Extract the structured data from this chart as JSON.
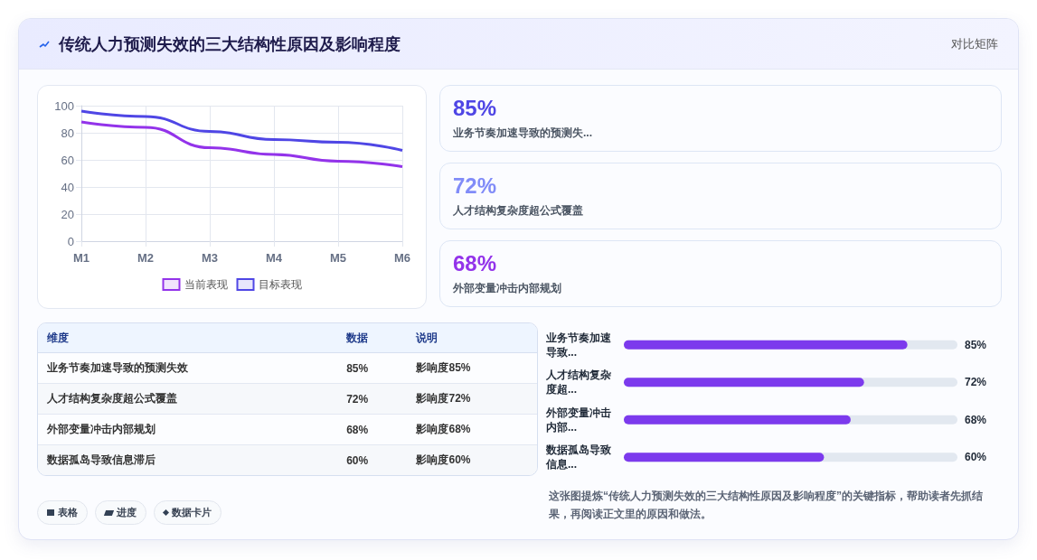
{
  "chart_data": [
    {
      "type": "other",
      "title": "传统人力预测失效的三大结构性原因及影响程度",
      "subtitle": "对比矩阵"
    },
    {
      "type": "line",
      "categories": [
        "M1",
        "M2",
        "M3",
        "M4",
        "M5",
        "M6"
      ],
      "series": [
        {
          "name": "当前表现",
          "color": "#9333ea",
          "values": [
            88,
            84,
            69,
            64,
            59,
            55
          ]
        },
        {
          "name": "目标表现",
          "color": "#4f46e5",
          "values": [
            96,
            92,
            81,
            75,
            73,
            67
          ]
        }
      ],
      "ylim": [
        0,
        100
      ],
      "yticks": [
        0,
        20,
        40,
        60,
        80,
        100
      ],
      "grid": true,
      "legend": "bottom"
    },
    {
      "type": "other",
      "categories": [
        "业务节奏加速导致的预测失...",
        "人才结构复杂度超公式覆盖",
        "外部变量冲击内部规划"
      ],
      "value_labels": [
        "85%",
        "72%",
        "68%"
      ]
    },
    {
      "type": "other",
      "xlabel": "维度",
      "ylabel": "数据",
      "y2label": "说明",
      "categories": [
        "业务节奏加速导致的预测失效",
        "人才结构复杂度超公式覆盖",
        "外部变量冲击内部规划",
        "数据孤岛导致信息滞后"
      ],
      "value_labels": [
        "85%",
        "72%",
        "68%",
        "60%"
      ],
      "y2_categories": [
        "影响度85%",
        "影响度72%",
        "影响度68%",
        "影响度60%"
      ],
      "annotations": [
        "表格",
        "进度",
        "数据卡片"
      ]
    },
    {
      "type": "bar",
      "orientation": "horizontal",
      "categories": [
        "业务节奏加速导致...",
        "人才结构复杂度超...",
        "外部变量冲击内部...",
        "数据孤岛导致信息..."
      ],
      "values": [
        85,
        72,
        68,
        60
      ],
      "value_labels": [
        "85%",
        "72%",
        "68%",
        "60%"
      ],
      "color": "#7c3aed",
      "xlim": [
        0,
        100
      ],
      "tick_labels": "y",
      "annotations": [
        "这张图提炼“传统人力预测失效的三大结构性原因及影响程度”的关键指标，帮助读者先抓结果，再阅读正文里的原因和做法。"
      ]
    }
  ]
}
